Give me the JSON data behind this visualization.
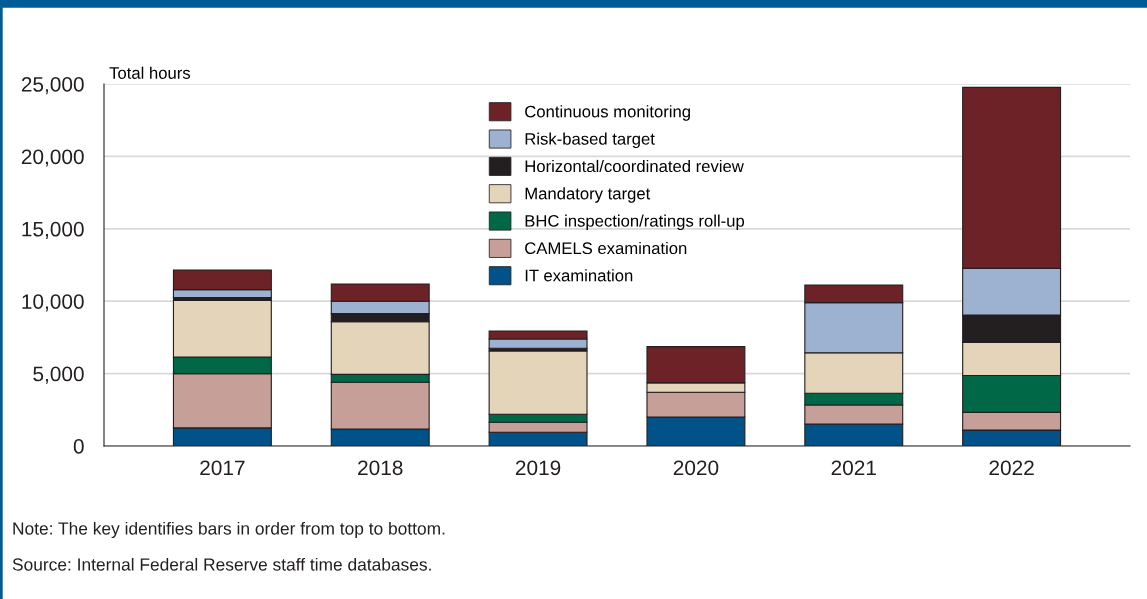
{
  "chart_data": {
    "type": "bar",
    "stacked": true,
    "ylabel": "Total hours",
    "categories": [
      "2017",
      "2018",
      "2019",
      "2020",
      "2021",
      "2022"
    ],
    "series": [
      {
        "name": "IT examination",
        "color": "#005288",
        "values": [
          1250,
          1170,
          950,
          2000,
          1520,
          1100
        ]
      },
      {
        "name": "CAMELS examination",
        "color": "#c59f98",
        "values": [
          3750,
          3230,
          690,
          1710,
          1310,
          1220
        ]
      },
      {
        "name": "BHC inspection/ratings roll-up",
        "color": "#006847",
        "values": [
          1150,
          550,
          550,
          0,
          810,
          2550
        ]
      },
      {
        "name": "Mandatory target",
        "color": "#e4d4b9",
        "values": [
          3900,
          3630,
          4370,
          660,
          2800,
          2290
        ]
      },
      {
        "name": "Horizontal/coordinated review",
        "color": "#231f20",
        "values": [
          200,
          560,
          190,
          0,
          0,
          1880
        ]
      },
      {
        "name": "Risk-based target",
        "color": "#9db1d0",
        "values": [
          550,
          860,
          640,
          0,
          3460,
          3230
        ]
      },
      {
        "name": "Continuous monitoring",
        "color": "#6d2228",
        "values": [
          1350,
          1190,
          550,
          2490,
          1220,
          12500
        ]
      }
    ],
    "ylim": [
      0,
      25000
    ],
    "yticks": [
      {
        "value": 0,
        "label": "0"
      },
      {
        "value": 5000,
        "label": "5,000"
      },
      {
        "value": 10000,
        "label": "10,000"
      },
      {
        "value": 15000,
        "label": "15,000"
      },
      {
        "value": 20000,
        "label": "20,000"
      },
      {
        "value": 25000,
        "label": "25,000"
      }
    ],
    "grid": "y",
    "legend": "top",
    "annotations": [
      "Note: The key identifies bars in order from top to bottom.",
      "Source: Internal Federal Reserve staff time databases."
    ]
  }
}
